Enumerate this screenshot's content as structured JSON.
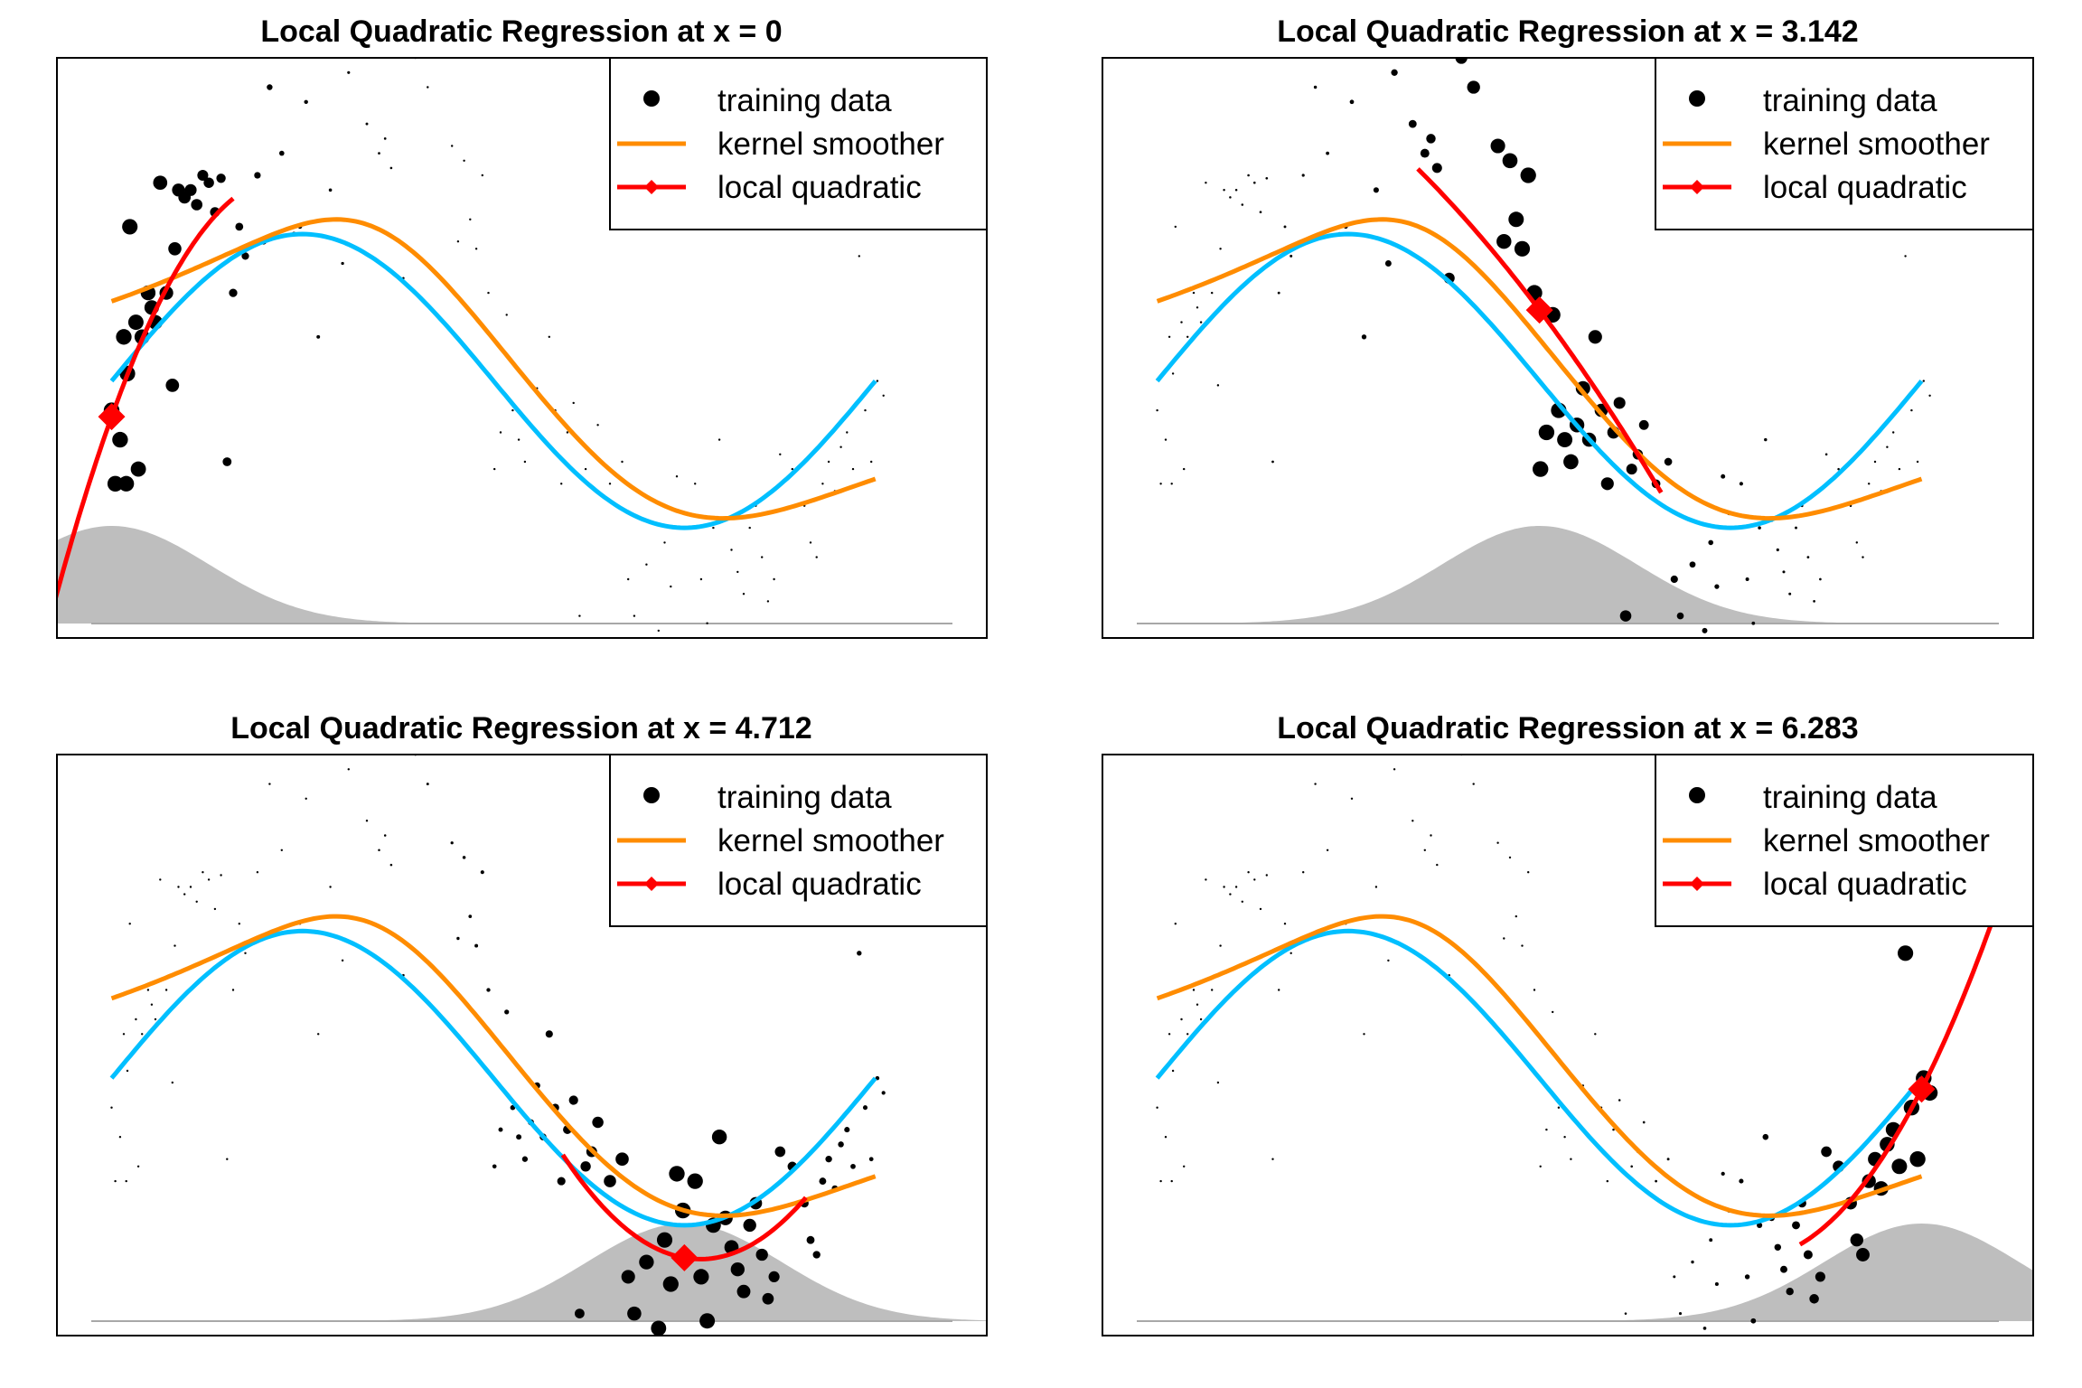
{
  "figure": {
    "colors": {
      "training_data": "#000000",
      "kernel_smoother": "#FF8C00",
      "true_function": "#00BFFF",
      "local_quadratic": "#FF0000",
      "kernel_fill": "#BEBEBE",
      "kernel_line": "#A8A8A8"
    }
  },
  "chart_data": [
    {
      "type": "line",
      "title": "Local Quadratic Regression at x = 0",
      "x0": 0,
      "legend": [
        "training data",
        "kernel smoother",
        "local quadratic"
      ],
      "legend_position": "top-right",
      "xlim": [
        -0.45,
        7.2
      ],
      "ylim": [
        -1.75,
        2.2
      ],
      "axes_ticks": false,
      "grid": false
    },
    {
      "type": "line",
      "title": "Local Quadratic Regression at x = 3.142",
      "x0": 3.142,
      "legend": [
        "training data",
        "kernel smoother",
        "local quadratic"
      ],
      "legend_position": "top-right",
      "xlim": [
        -0.45,
        7.2
      ],
      "ylim": [
        -1.75,
        2.2
      ],
      "axes_ticks": false,
      "grid": false
    },
    {
      "type": "line",
      "title": "Local Quadratic Regression at x = 4.712",
      "x0": 4.712,
      "legend": [
        "training data",
        "kernel smoother",
        "local quadratic"
      ],
      "legend_position": "top-right",
      "xlim": [
        -0.45,
        7.2
      ],
      "ylim": [
        -1.75,
        2.2
      ],
      "axes_ticks": false,
      "grid": false
    },
    {
      "type": "line",
      "title": "Local Quadratic Regression at x = 6.283",
      "x0": 6.283,
      "legend": [
        "training data",
        "kernel smoother",
        "local quadratic"
      ],
      "legend_position": "top-right",
      "xlim": [
        -0.45,
        7.2
      ],
      "ylim": [
        -1.75,
        2.2
      ],
      "axes_ticks": false,
      "grid": false
    }
  ],
  "data_model": {
    "true_function": "sin(x)",
    "x_range": [
      0,
      6.283
    ],
    "kernel_bandwidth": 0.8,
    "training_points": [
      [
        0.0,
        -0.2
      ],
      [
        0.03,
        -0.7
      ],
      [
        0.07,
        -0.4
      ],
      [
        0.1,
        0.3
      ],
      [
        0.12,
        -0.7
      ],
      [
        0.13,
        0.05
      ],
      [
        0.15,
        1.05
      ],
      [
        0.2,
        0.4
      ],
      [
        0.22,
        -0.6
      ],
      [
        0.25,
        0.3
      ],
      [
        0.3,
        0.6
      ],
      [
        0.33,
        0.5
      ],
      [
        0.36,
        0.4
      ],
      [
        0.4,
        1.35
      ],
      [
        0.45,
        0.6
      ],
      [
        0.5,
        -0.03
      ],
      [
        0.52,
        0.9
      ],
      [
        0.55,
        1.3
      ],
      [
        0.6,
        1.25
      ],
      [
        0.65,
        1.3
      ],
      [
        0.7,
        1.2
      ],
      [
        0.75,
        1.4
      ],
      [
        0.8,
        1.35
      ],
      [
        0.85,
        1.15
      ],
      [
        0.9,
        1.38
      ],
      [
        0.95,
        -0.55
      ],
      [
        1.0,
        0.6
      ],
      [
        1.05,
        1.05
      ],
      [
        1.1,
        0.85
      ],
      [
        1.2,
        1.4
      ],
      [
        1.25,
        0.95
      ],
      [
        1.3,
        2.0
      ],
      [
        1.4,
        1.55
      ],
      [
        1.5,
        1.0
      ],
      [
        1.55,
        1.05
      ],
      [
        1.6,
        1.9
      ],
      [
        1.7,
        0.3
      ],
      [
        1.8,
        1.3
      ],
      [
        1.9,
        0.8
      ],
      [
        1.95,
        2.1
      ],
      [
        2.1,
        1.75
      ],
      [
        2.2,
        1.55
      ],
      [
        2.25,
        1.65
      ],
      [
        2.3,
        1.45
      ],
      [
        2.4,
        0.7
      ],
      [
        2.5,
        2.2
      ],
      [
        2.6,
        2.0
      ],
      [
        2.75,
        2.3
      ],
      [
        2.8,
        1.6
      ],
      [
        2.85,
        0.95
      ],
      [
        2.9,
        1.5
      ],
      [
        2.95,
        1.1
      ],
      [
        3.0,
        0.9
      ],
      [
        3.05,
        1.4
      ],
      [
        3.1,
        0.6
      ],
      [
        3.15,
        -0.6
      ],
      [
        3.2,
        -0.35
      ],
      [
        3.25,
        0.45
      ],
      [
        3.3,
        -0.2
      ],
      [
        3.35,
        -0.4
      ],
      [
        3.4,
        -0.55
      ],
      [
        3.45,
        -0.3
      ],
      [
        3.5,
        -0.05
      ],
      [
        3.55,
        -0.4
      ],
      [
        3.6,
        0.3
      ],
      [
        3.65,
        -0.2
      ],
      [
        3.7,
        -0.7
      ],
      [
        3.75,
        -0.35
      ],
      [
        3.8,
        -0.15
      ],
      [
        3.85,
        -1.6
      ],
      [
        3.9,
        -0.6
      ],
      [
        3.95,
        -0.5
      ],
      [
        4.0,
        -0.3
      ],
      [
        4.1,
        -0.7
      ],
      [
        4.2,
        -0.55
      ],
      [
        4.25,
        -1.35
      ],
      [
        4.3,
        -1.6
      ],
      [
        4.4,
        -1.25
      ],
      [
        4.45,
        -1.85
      ],
      [
        4.5,
        -1.7
      ],
      [
        4.55,
        -1.1
      ],
      [
        4.6,
        -1.4
      ],
      [
        4.65,
        -0.65
      ],
      [
        4.7,
        -0.9
      ],
      [
        4.75,
        -1.8
      ],
      [
        4.8,
        -0.7
      ],
      [
        4.85,
        -1.35
      ],
      [
        4.9,
        -1.65
      ],
      [
        4.95,
        -1.0
      ],
      [
        5.0,
        -0.4
      ],
      [
        5.05,
        -0.95
      ],
      [
        5.1,
        -1.15
      ],
      [
        5.15,
        -1.3
      ],
      [
        5.2,
        -1.45
      ],
      [
        5.25,
        -1.0
      ],
      [
        5.3,
        -0.85
      ],
      [
        5.35,
        -1.2
      ],
      [
        5.4,
        -1.5
      ],
      [
        5.45,
        -1.35
      ],
      [
        5.5,
        -0.5
      ],
      [
        5.6,
        -0.6
      ],
      [
        5.7,
        -0.85
      ],
      [
        5.75,
        -1.1
      ],
      [
        5.8,
        -1.2
      ],
      [
        5.85,
        -0.7
      ],
      [
        5.9,
        -0.55
      ],
      [
        5.95,
        -0.75
      ],
      [
        6.0,
        -0.45
      ],
      [
        6.05,
        -0.35
      ],
      [
        6.1,
        -0.6
      ],
      [
        6.15,
        0.85
      ],
      [
        6.2,
        -0.2
      ],
      [
        6.25,
        -0.55
      ],
      [
        6.3,
        0.0
      ],
      [
        6.35,
        -0.1
      ]
    ]
  }
}
